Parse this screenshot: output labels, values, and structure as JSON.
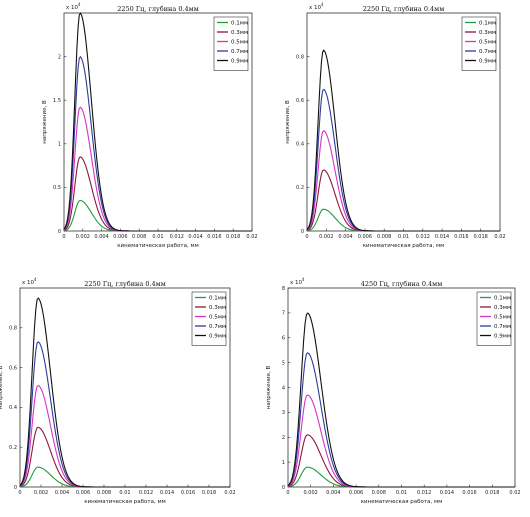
{
  "chart_data": [
    {
      "type": "line",
      "title": "2250 Гц, глубина 0.4мм",
      "xlabel": "кинематическая работа, мм",
      "ylabel": "напряжение, В",
      "y_multiplier_label": "x 10",
      "y_multiplier_exp": "4",
      "xlim": [
        0,
        0.02
      ],
      "ylim": [
        0,
        2.5
      ],
      "x_ticks": [
        "0",
        "0.002",
        "0.004",
        "0.006",
        "0.008",
        "0.01",
        "0.012",
        "0.014",
        "0.016",
        "0.018",
        "0.02"
      ],
      "y_ticks": [
        "0",
        "0.5",
        "1",
        "1.5",
        "2"
      ],
      "legend_position": "top-right",
      "series": [
        {
          "name": "0.1мм",
          "peak": 0.35,
          "color": "#1f9e3a"
        },
        {
          "name": "0.3мм",
          "peak": 0.85,
          "color": "#8b1a3d"
        },
        {
          "name": "0.5мм",
          "peak": 1.42,
          "color": "#d633c8"
        },
        {
          "name": "0.7мм",
          "peak": 2.0,
          "color": "#2e3b9e"
        },
        {
          "name": "0.9мм",
          "peak": 2.5,
          "color": "#111111"
        }
      ]
    },
    {
      "type": "line",
      "title": "2250 Гц, глубина 0.4мм",
      "xlabel": "кинематическая работа, мм",
      "ylabel": "напряжение, В",
      "y_multiplier_label": "x 10",
      "y_multiplier_exp": "4",
      "xlim": [
        0,
        0.02
      ],
      "ylim": [
        0,
        1
      ],
      "x_ticks": [
        "0",
        "0.002",
        "0.004",
        "0.006",
        "0.008",
        "0.01",
        "0.012",
        "0.014",
        "0.016",
        "0.018",
        "0.02"
      ],
      "y_ticks": [
        "0",
        "0.2",
        "0.4",
        "0.6",
        "0.8"
      ],
      "legend_position": "top-right",
      "series": [
        {
          "name": "0.1мм",
          "peak": 0.1,
          "color": "#1f9e3a"
        },
        {
          "name": "0.3мм",
          "peak": 0.28,
          "color": "#8b1a3d"
        },
        {
          "name": "0.5мм",
          "peak": 0.46,
          "color": "#d633c8"
        },
        {
          "name": "0.7мм",
          "peak": 0.65,
          "color": "#2e3b9e"
        },
        {
          "name": "0.9мм",
          "peak": 0.83,
          "color": "#111111"
        }
      ]
    },
    {
      "type": "line",
      "title": "2250 Гц, глубина 0.4мм",
      "xlabel": "кинематическая работа, мм",
      "ylabel": "напряжение, В",
      "y_multiplier_label": "x 10",
      "y_multiplier_exp": "4",
      "xlim": [
        0,
        0.02
      ],
      "ylim": [
        0,
        1
      ],
      "x_ticks": [
        "0",
        "0.002",
        "0.004",
        "0.006",
        "0.008",
        "0.01",
        "0.012",
        "0.014",
        "0.016",
        "0.018",
        "0.02"
      ],
      "y_ticks": [
        "0",
        "0.2",
        "0.4",
        "0.6",
        "0.8"
      ],
      "legend_position": "top-right",
      "series": [
        {
          "name": "0.1мм",
          "peak": 0.1,
          "color": "#1f9e3a"
        },
        {
          "name": "0.3мм",
          "peak": 0.3,
          "color": "#8b1a3d"
        },
        {
          "name": "0.5мм",
          "peak": 0.51,
          "color": "#d633c8"
        },
        {
          "name": "0.7мм",
          "peak": 0.73,
          "color": "#2e3b9e"
        },
        {
          "name": "0.9мм",
          "peak": 0.95,
          "color": "#111111"
        }
      ]
    },
    {
      "type": "line",
      "title": "4250 Гц, глубина 0.4мм",
      "xlabel": "кинематическая работа, мм",
      "ylabel": "напряжение, В",
      "y_multiplier_label": "x 10",
      "y_multiplier_exp": "4",
      "xlim": [
        0,
        0.02
      ],
      "ylim": [
        0,
        8
      ],
      "x_ticks": [
        "0",
        "0.002",
        "0.004",
        "0.006",
        "0.008",
        "0.01",
        "0.012",
        "0.014",
        "0.016",
        "0.018",
        "0.02"
      ],
      "y_ticks": [
        "0",
        "1",
        "2",
        "3",
        "4",
        "5",
        "6",
        "7",
        "8"
      ],
      "legend_position": "top-right",
      "series": [
        {
          "name": "0.1мм",
          "peak": 0.8,
          "color": "#1f9e3a"
        },
        {
          "name": "0.3мм",
          "peak": 2.1,
          "color": "#8b1a3d"
        },
        {
          "name": "0.5мм",
          "peak": 3.7,
          "color": "#d633c8"
        },
        {
          "name": "0.7мм",
          "peak": 5.4,
          "color": "#2e3b9e"
        },
        {
          "name": "0.9мм",
          "peak": 7.0,
          "color": "#111111"
        }
      ]
    }
  ]
}
